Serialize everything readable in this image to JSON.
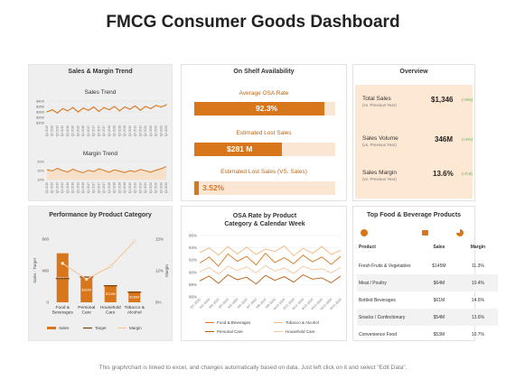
{
  "page": {
    "title": "FMCG Consumer Goods Dashboard",
    "footer": "This graph/chart is linked to excel, and changes automatically based on data. Just left click on it and select \"Edit Data\"."
  },
  "colors": {
    "accent": "#d8761b",
    "accent_light": "#f5c99a",
    "panel_grey": "#efefef",
    "positive": "#4caf50"
  },
  "sales_margin": {
    "panel_title": "Sales & Margin Trend",
    "sales_title": "Sales Trend",
    "margin_title": "Margin Trend",
    "sales_yticks": [
      "$400",
      "$350",
      "$300",
      "$250",
      "$200"
    ],
    "margin_yticks": [
      "20%",
      "15%",
      "10%"
    ]
  },
  "osa": {
    "panel_title": "On Shelf Availability",
    "items": [
      {
        "label": "Average OSA Rate",
        "value": "92.3%",
        "fill": 0.923
      },
      {
        "label": "Estimated Lost Sales",
        "value": "$281 M",
        "fill": 0.62
      },
      {
        "label": "Estimated Lost Sales (VS. Sales)",
        "value": "3.52%",
        "fill": 0.035
      }
    ]
  },
  "overview": {
    "panel_title": "Overview",
    "rows": [
      {
        "name": "Total Sales",
        "sub": "(vs. Previous Year)",
        "value": "$1,346",
        "change": "(+6%)"
      },
      {
        "name": "Sales Volume",
        "sub": "(vs. Previous Year)",
        "value": "346M",
        "change": "(+4%)"
      },
      {
        "name": "Sales Margin",
        "sub": "(vs. Previous Year)",
        "value": "13.6%",
        "change": "(+0.8)"
      }
    ]
  },
  "category": {
    "panel_title": "Performance  by Product Category",
    "left_axis_label": "Sales · Target",
    "right_axis_label": "Margin",
    "left_ticks": [
      "800",
      "400",
      "0"
    ],
    "right_ticks": [
      "15%",
      "12%",
      "9%"
    ],
    "legend": {
      "sales": "Sales",
      "target": "Target",
      "margin": "Margin"
    }
  },
  "osa_rate": {
    "panel_title": "OSA Rate by Product Category & Calendar Week",
    "yticks": [
      "96%",
      "94%",
      "92%",
      "90%",
      "88%",
      "86%"
    ],
    "legend": [
      "Food & Beverages",
      "Tobacco & Alcohol",
      "Personal Care",
      "Household Care"
    ]
  },
  "products": {
    "panel_title": "Top Food & Beverage Products",
    "columns": [
      "Product",
      "Sales",
      "Margin"
    ],
    "rows": [
      {
        "product": "Fresh Fruits & Vegetables",
        "sales": "$145M",
        "margin": "11.3%"
      },
      {
        "product": "Meat / Poultry",
        "sales": "$64M",
        "margin": "10.4%"
      },
      {
        "product": "Bottled Beverages",
        "sales": "$61M",
        "margin": "14.6%"
      },
      {
        "product": "Snacks / Confectionary",
        "sales": "$54M",
        "margin": "13.6%"
      },
      {
        "product": "Convenience Food",
        "sales": "$53M",
        "margin": "10.7%"
      }
    ]
  },
  "chart_data": [
    {
      "type": "line",
      "title": "Sales Trend",
      "ylim": [
        200,
        400
      ],
      "x": [
        "Q1 2015",
        "Q2 2015",
        "Q3 2015",
        "Q4 2015",
        "Q1 2016",
        "Q2 2016",
        "Q3 2016",
        "Q4 2016",
        "Q1 2017",
        "Q2 2017",
        "Q3 2017",
        "Q4 2017",
        "Q1 2018",
        "Q2 2018",
        "Q3 2018",
        "Q4 2018",
        "Q1 2019",
        "Q2 2019",
        "Q3 2019",
        "Q4 2019",
        "Q1 2020",
        "Q2 2020",
        "Q3 2020",
        "Q4 2020"
      ],
      "series": [
        {
          "values": [
            300,
            320,
            290,
            330,
            310,
            340,
            300,
            335,
            315,
            345,
            305,
            340,
            320,
            350,
            310,
            345,
            325,
            355,
            315,
            350,
            330,
            360,
            345,
            365
          ]
        }
      ]
    },
    {
      "type": "area",
      "title": "Margin Trend",
      "ylim": [
        10,
        20
      ],
      "x": [
        "Q1 2015",
        "Q2 2015",
        "Q3 2015",
        "Q4 2015",
        "Q1 2016",
        "Q2 2016",
        "Q3 2016",
        "Q4 2016",
        "Q1 2017",
        "Q2 2017",
        "Q3 2017",
        "Q4 2017",
        "Q1 2018",
        "Q2 2018",
        "Q3 2018",
        "Q4 2018",
        "Q1 2019",
        "Q2 2019",
        "Q3 2019",
        "Q4 2019",
        "Q1 2020",
        "Q2 2020",
        "Q3 2020",
        "Q4 2020"
      ],
      "series": [
        {
          "values": [
            15.5,
            14.8,
            16.2,
            15.0,
            14.2,
            15.8,
            14.6,
            13.8,
            15.2,
            14.4,
            16.0,
            15.1,
            14.0,
            15.4,
            14.7,
            13.9,
            15.0,
            14.3,
            15.6,
            14.9,
            14.1,
            15.2,
            16.0,
            17.2
          ]
        }
      ]
    },
    {
      "type": "bar",
      "title": "Performance  by Product Category",
      "categories": [
        "Food & Beverages",
        "Personal Care",
        "Household Care",
        "Tobacco & Alcohol"
      ],
      "ylim": [
        0,
        800
      ],
      "y2lim": [
        9,
        15
      ],
      "series": [
        {
          "name": "Sales",
          "values": [
            621,
            320,
            215,
            138
          ],
          "labels": [
            "$621M",
            "$320M",
            "$215M",
            "$138M"
          ]
        },
        {
          "name": "Target",
          "values": [
            300,
            320,
            210,
            128
          ]
        },
        {
          "name": "Margin",
          "axis": "right",
          "values": [
            12.7,
            11.2,
            12.4,
            14.8
          ]
        }
      ]
    },
    {
      "type": "line",
      "title": "OSA Rate by Product Category & Calendar Week",
      "ylim": [
        86,
        96
      ],
      "x": [
        "W1 2020",
        "W2 2020",
        "W3 2020",
        "W4 2020",
        "W5 2020",
        "W6 2020",
        "W7 2020",
        "W8 2020",
        "W9 2020",
        "W10 2020",
        "W11 2020",
        "W12 2020",
        "W13 2020",
        "W14 2020",
        "W15 2020",
        "W16 2020"
      ],
      "series": [
        {
          "name": "Food & Beverages",
          "values": [
            91.5,
            92.5,
            91.0,
            93.0,
            91.8,
            92.6,
            91.2,
            93.1,
            91.6,
            92.4,
            91.4,
            92.8,
            91.7,
            92.5,
            91.3,
            92.6
          ]
        },
        {
          "name": "Tobacco & Alcohol",
          "values": [
            93.2,
            94.0,
            92.8,
            94.2,
            93.0,
            94.1,
            92.9,
            93.8,
            93.4,
            94.3,
            92.7,
            93.9,
            93.1,
            94.2,
            92.9,
            93.6
          ]
        },
        {
          "name": "Personal Care",
          "values": [
            88.6,
            89.4,
            88.2,
            89.6,
            88.8,
            89.2,
            88.1,
            89.5,
            88.7,
            89.3,
            88.4,
            89.6,
            88.9,
            89.1,
            88.3,
            89.4
          ]
        },
        {
          "name": "Household Care",
          "values": [
            90.1,
            90.8,
            89.7,
            91.0,
            90.3,
            90.9,
            89.9,
            91.1,
            90.2,
            90.7,
            89.8,
            91.0,
            90.4,
            90.6,
            89.9,
            90.8
          ]
        }
      ]
    }
  ]
}
